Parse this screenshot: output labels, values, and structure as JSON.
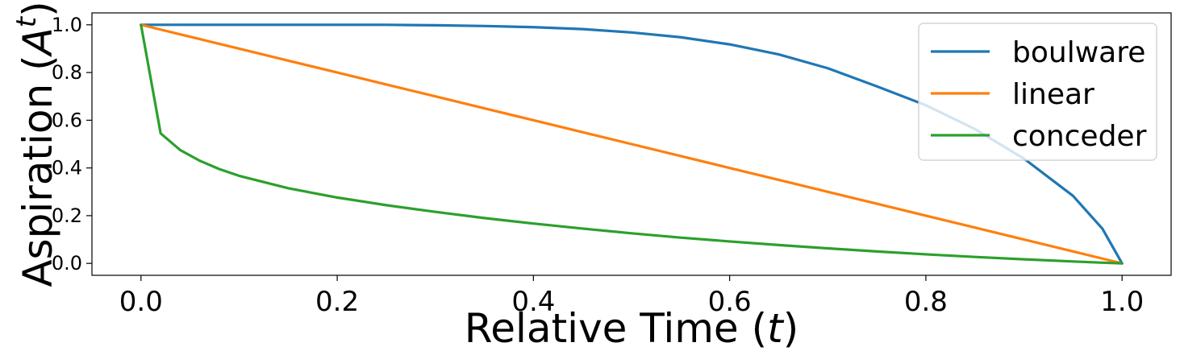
{
  "chart_data": {
    "type": "line",
    "xlabel": {
      "text": "Relative Time (",
      "var": "t",
      "close": ")"
    },
    "ylabel": {
      "text": "Aspiration (",
      "var": "A",
      "sup": "t",
      "close": ")"
    },
    "xlim": [
      -0.05,
      1.05
    ],
    "ylim": [
      -0.05,
      1.05
    ],
    "xticks": [
      0.0,
      0.2,
      0.4,
      0.6,
      0.8,
      1.0
    ],
    "xtick_labels": [
      "0.0",
      "0.2",
      "0.4",
      "0.6",
      "0.8",
      "1.0"
    ],
    "yticks": [
      0.0,
      0.2,
      0.4,
      0.6,
      0.8,
      1.0
    ],
    "ytick_labels": [
      "0.0",
      "0.2",
      "0.4",
      "0.6",
      "0.8",
      "1.0"
    ],
    "grid": false,
    "legend": "top-right",
    "x": [
      0.0,
      0.02,
      0.04,
      0.06,
      0.08,
      0.1,
      0.15,
      0.2,
      0.25,
      0.3,
      0.35,
      0.4,
      0.45,
      0.5,
      0.55,
      0.6,
      0.65,
      0.7,
      0.75,
      0.8,
      0.85,
      0.9,
      0.95,
      0.98,
      1.0
    ],
    "series": [
      {
        "name": "boulware",
        "color": "#1f77b4",
        "values": [
          1.0,
          1.0,
          1.0,
          1.0,
          1.0,
          1.0,
          1.0,
          1.0,
          1.0,
          0.998,
          0.995,
          0.99,
          0.982,
          0.968,
          0.948,
          0.918,
          0.876,
          0.818,
          0.742,
          0.663,
          0.563,
          0.439,
          0.283,
          0.145,
          0.0
        ]
      },
      {
        "name": "linear",
        "color": "#ff7f0e",
        "values": [
          1.0,
          0.98,
          0.96,
          0.94,
          0.92,
          0.9,
          0.85,
          0.8,
          0.75,
          0.7,
          0.65,
          0.6,
          0.55,
          0.5,
          0.45,
          0.4,
          0.35,
          0.3,
          0.25,
          0.2,
          0.15,
          0.1,
          0.05,
          0.02,
          0.0
        ]
      },
      {
        "name": "conceder",
        "color": "#2ca02c",
        "values": [
          1.0,
          0.545,
          0.475,
          0.43,
          0.395,
          0.367,
          0.315,
          0.276,
          0.244,
          0.216,
          0.19,
          0.167,
          0.146,
          0.126,
          0.108,
          0.092,
          0.077,
          0.063,
          0.05,
          0.038,
          0.027,
          0.017,
          0.008,
          0.003,
          0.0
        ]
      }
    ]
  }
}
